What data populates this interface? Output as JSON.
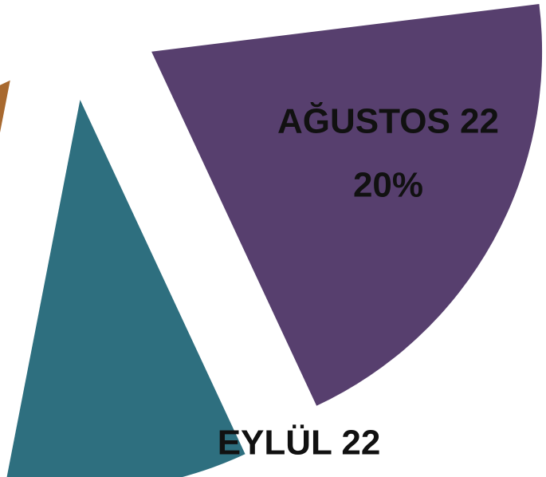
{
  "chart_data": {
    "type": "pie",
    "categories": [
      "AĞUSTOS 22",
      "EYLÜL 22",
      null
    ],
    "values": [
      20,
      10,
      15
    ],
    "value_labels": [
      "20%",
      null,
      null
    ],
    "colors": [
      "#573f6e",
      "#2e6f7f",
      "#a8692f"
    ],
    "exploded": true
  }
}
